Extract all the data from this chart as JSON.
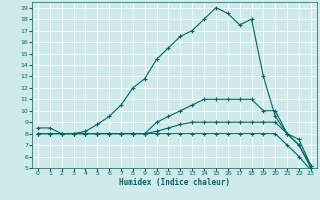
{
  "xlabel": "Humidex (Indice chaleur)",
  "bg_color": "#ceeaea",
  "grid_color": "#ffffff",
  "line_color": "#006666",
  "xlim": [
    -0.5,
    23.5
  ],
  "ylim": [
    5,
    19.5
  ],
  "xticks": [
    0,
    1,
    2,
    3,
    4,
    5,
    6,
    7,
    8,
    9,
    10,
    11,
    12,
    13,
    14,
    15,
    16,
    17,
    18,
    19,
    20,
    21,
    22,
    23
  ],
  "yticks": [
    5,
    6,
    7,
    8,
    9,
    10,
    11,
    12,
    13,
    14,
    15,
    16,
    17,
    18,
    19
  ],
  "line1_x": [
    0,
    1,
    2,
    3,
    4,
    5,
    6,
    7,
    8,
    9,
    10,
    11,
    12,
    13,
    14,
    15,
    16,
    17,
    18,
    19,
    20,
    21,
    22,
    23
  ],
  "line1_y": [
    8.5,
    8.5,
    8,
    8,
    8.2,
    8.8,
    9.5,
    10.5,
    12,
    12.8,
    14.5,
    15.5,
    16.5,
    17,
    18,
    19,
    18.5,
    17.5,
    18,
    13,
    9.5,
    8,
    7,
    5
  ],
  "line2_x": [
    0,
    1,
    2,
    3,
    4,
    5,
    6,
    7,
    8,
    9,
    10,
    11,
    12,
    13,
    14,
    15,
    16,
    17,
    18,
    19,
    20,
    21,
    22,
    23
  ],
  "line2_y": [
    8,
    8,
    8,
    8,
    8,
    8,
    8,
    8,
    8,
    8,
    9,
    9.5,
    10,
    10.5,
    11,
    11,
    11,
    11,
    11,
    10,
    10,
    8,
    7.5,
    5.2
  ],
  "line3_x": [
    0,
    1,
    2,
    3,
    4,
    5,
    6,
    7,
    8,
    9,
    10,
    11,
    12,
    13,
    14,
    15,
    16,
    17,
    18,
    19,
    20,
    21,
    22,
    23
  ],
  "line3_y": [
    8,
    8,
    8,
    8,
    8,
    8,
    8,
    8,
    8,
    8,
    8.2,
    8.5,
    8.8,
    9,
    9,
    9,
    9,
    9,
    9,
    9,
    9,
    8,
    7,
    5.2
  ],
  "line4_x": [
    0,
    1,
    2,
    3,
    4,
    5,
    6,
    7,
    8,
    9,
    10,
    11,
    12,
    13,
    14,
    15,
    16,
    17,
    18,
    19,
    20,
    21,
    22,
    23
  ],
  "line4_y": [
    8,
    8,
    8,
    8,
    8,
    8,
    8,
    8,
    8,
    8,
    8,
    8,
    8,
    8,
    8,
    8,
    8,
    8,
    8,
    8,
    8,
    7,
    6,
    4.8
  ]
}
